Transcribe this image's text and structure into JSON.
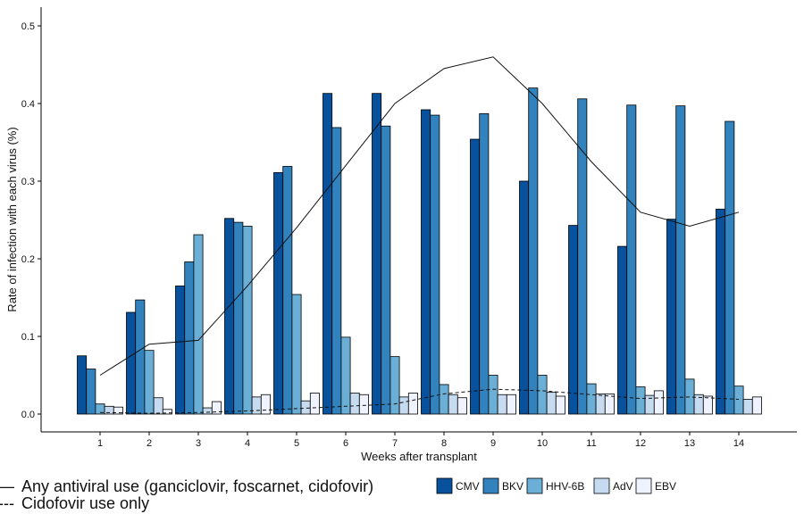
{
  "chart_data": {
    "type": "bar",
    "title": "",
    "xlabel": "Weeks after transplant",
    "ylabel": "Rate of infection with each virus (%)",
    "ylim": [
      0,
      0.5
    ],
    "yticks": [
      "0.0",
      "0.1",
      "0.2",
      "0.3",
      "0.4",
      "0.5"
    ],
    "categories": [
      "1",
      "2",
      "3",
      "4",
      "5",
      "6",
      "7",
      "8",
      "9",
      "10",
      "11",
      "12",
      "13",
      "14"
    ],
    "grid": false,
    "legend_position": "bottom",
    "series": [
      {
        "name": "CMV",
        "color": "#08519c",
        "values": [
          0.075,
          0.131,
          0.165,
          0.252,
          0.311,
          0.413,
          0.413,
          0.392,
          0.354,
          0.3,
          0.243,
          0.216,
          0.251,
          0.264
        ]
      },
      {
        "name": "BKV",
        "color": "#3182bd",
        "values": [
          0.058,
          0.147,
          0.196,
          0.247,
          0.319,
          0.369,
          0.371,
          0.385,
          0.387,
          0.42,
          0.406,
          0.398,
          0.397,
          0.377
        ]
      },
      {
        "name": "HHV-6B",
        "color": "#6baed6",
        "values": [
          0.013,
          0.082,
          0.231,
          0.242,
          0.154,
          0.099,
          0.074,
          0.038,
          0.05,
          0.05,
          0.039,
          0.035,
          0.045,
          0.036
        ]
      },
      {
        "name": "AdV",
        "color": "#c6dbef",
        "values": [
          0.01,
          0.021,
          0.008,
          0.022,
          0.017,
          0.027,
          0.022,
          0.025,
          0.025,
          0.028,
          0.026,
          0.024,
          0.025,
          0.019
        ]
      },
      {
        "name": "EBV",
        "color": "#eff3ff",
        "values": [
          0.009,
          0.006,
          0.016,
          0.025,
          0.027,
          0.025,
          0.027,
          0.021,
          0.025,
          0.023,
          0.026,
          0.03,
          0.023,
          0.022
        ]
      }
    ],
    "lines": [
      {
        "name": "Any antiviral use (ganciclovir, foscarnet, cidofovir)",
        "style": "solid",
        "values": [
          0.05,
          0.09,
          0.095,
          0.165,
          0.24,
          0.32,
          0.4,
          0.445,
          0.46,
          0.4,
          0.325,
          0.26,
          0.242,
          0.26
        ]
      },
      {
        "name": "Cidofovir use only",
        "style": "dashed",
        "values": [
          0.002,
          0.001,
          0.002,
          0.004,
          0.007,
          0.01,
          0.013,
          0.026,
          0.032,
          0.03,
          0.025,
          0.02,
          0.022,
          0.019
        ]
      }
    ],
    "line_legend": [
      {
        "marker": "—",
        "label": "Any antiviral use (ganciclovir, foscarnet, cidofovir)"
      },
      {
        "marker": "---",
        "label": "Cidofovir use only"
      }
    ]
  }
}
